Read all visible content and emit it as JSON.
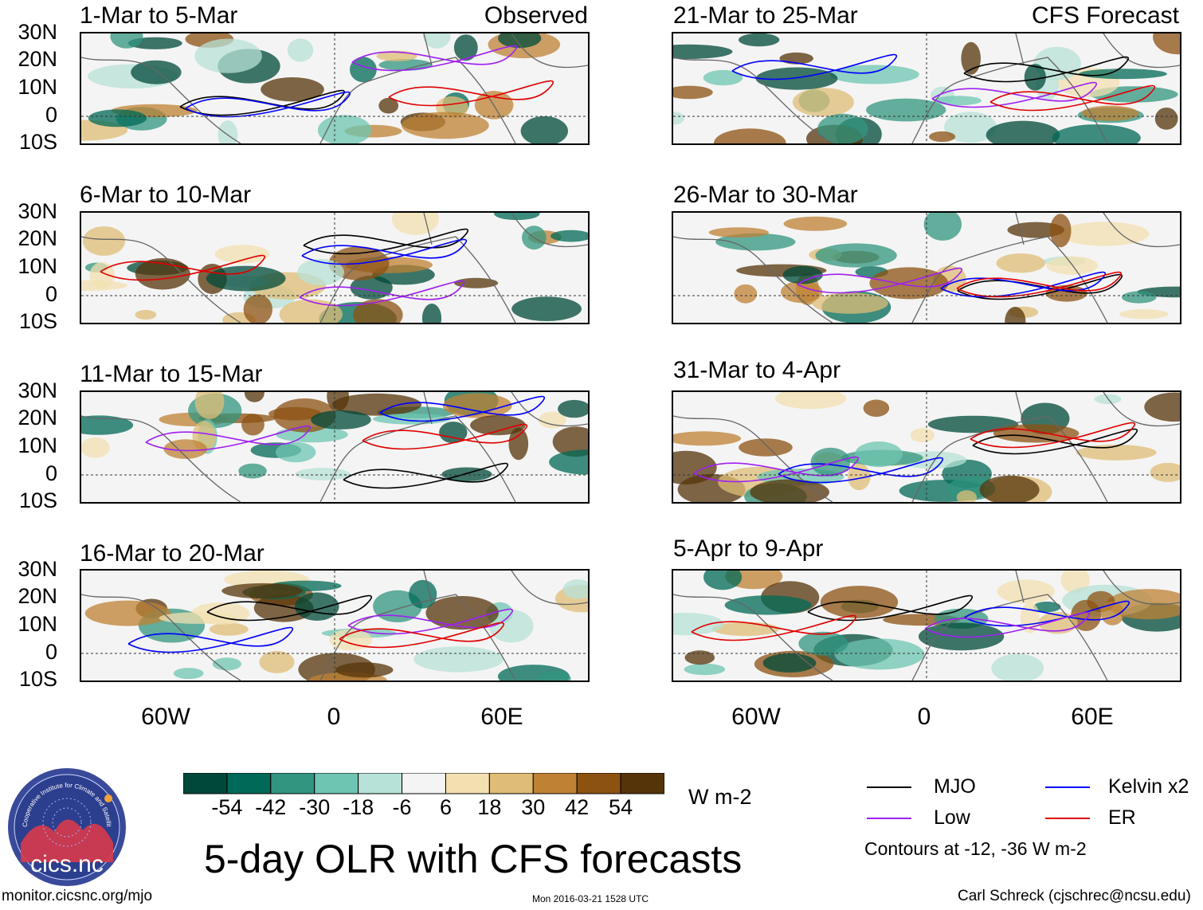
{
  "headers": {
    "observed_label": "Observed",
    "forecast_label": "CFS Forecast"
  },
  "panels_left": [
    {
      "title": "1-Mar to 5-Mar"
    },
    {
      "title": "6-Mar to 10-Mar"
    },
    {
      "title": "11-Mar to 15-Mar"
    },
    {
      "title": "16-Mar to 20-Mar"
    }
  ],
  "panels_right": [
    {
      "title": "21-Mar to 25-Mar"
    },
    {
      "title": "26-Mar to 30-Mar"
    },
    {
      "title": "31-Mar to 4-Apr"
    },
    {
      "title": "5-Apr to 9-Apr"
    }
  ],
  "lat_labels": [
    "30N",
    "20N",
    "10N",
    "0",
    "10S"
  ],
  "lon_labels": [
    "60W",
    "0",
    "60E"
  ],
  "colorbar": {
    "colors": [
      "#00493a",
      "#006957",
      "#31957f",
      "#6ec5b1",
      "#b7e2d7",
      "#f4f4f4",
      "#f3e0b0",
      "#dfbd77",
      "#bf8234",
      "#8c5212",
      "#56340a"
    ],
    "labels": [
      "-54",
      "-42",
      "-30",
      "-18",
      "-6",
      "6",
      "18",
      "30",
      "42",
      "54"
    ],
    "units": "W m-2"
  },
  "legend": {
    "items": [
      {
        "label": "MJO",
        "color": "#000000"
      },
      {
        "label": "Kelvin x2",
        "color": "#0000ff"
      },
      {
        "label": "Low",
        "color": "#a020f0"
      },
      {
        "label": "ER",
        "color": "#e00000"
      }
    ],
    "note": "Contours at -12, -36 W m-2"
  },
  "logo": {
    "text": "cics.nc",
    "ring_text": "Cooperative Institute for Climate and Satellites"
  },
  "footer": {
    "main_title": "5-day OLR with CFS forecasts",
    "website": "monitor.cicsnc.org/mjo",
    "timestamp": "Mon 2016-03-21 1528 UTC",
    "author": "Carl Schreck (cjschrec@ncsu.edu)"
  }
}
